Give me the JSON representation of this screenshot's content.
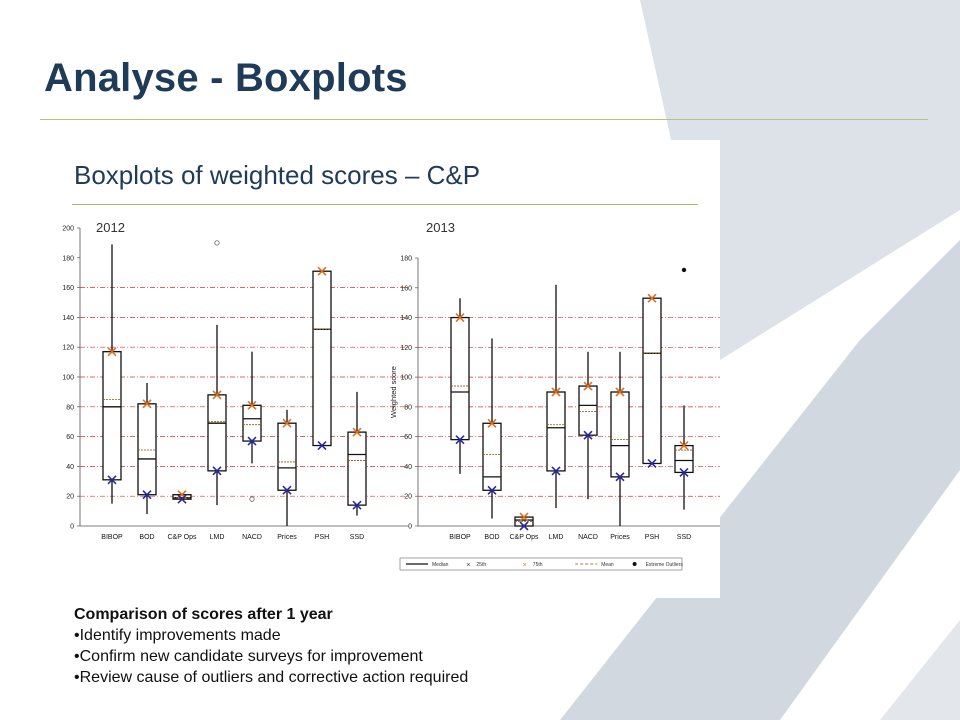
{
  "slide": {
    "title": "Analyse - Boxplots",
    "chart_heading": "Boxplots of weighted scores – C&P",
    "notes_heading": "Comparison of scores after 1 year",
    "notes": [
      "Identify improvements made",
      "Confirm new candidate surveys for improvement",
      "Review cause of outliers and corrective action required"
    ],
    "colors": {
      "title": "#1f3b57",
      "rule": "#b5c47a",
      "p75": "#e07020",
      "p25": "#2a2aa0",
      "gridline": "#e03030",
      "watermark": "#d8dde3"
    }
  },
  "chart_data": [
    {
      "type": "boxplot",
      "title": "2012",
      "xlabel": "",
      "ylabel": "",
      "ylim": [
        0,
        200
      ],
      "yticks": [
        0,
        20,
        40,
        60,
        80,
        100,
        120,
        140,
        160,
        180,
        200
      ],
      "gridlines": [
        20,
        40,
        60,
        80,
        100,
        120,
        140,
        160
      ],
      "categories": [
        "BIBOP",
        "BOD",
        "C&P Ops",
        "LMD",
        "NACD",
        "Prices",
        "PSH",
        "SSD"
      ],
      "boxes": [
        {
          "category": "BIBOP",
          "min": 15,
          "q1": 31,
          "median": 80,
          "mean": 85,
          "q3": 117,
          "max": 189,
          "p25": 31,
          "p75": 117
        },
        {
          "category": "BOD",
          "min": 8,
          "q1": 21,
          "median": 45,
          "mean": 51,
          "q3": 82,
          "max": 96,
          "p25": 21,
          "p75": 82
        },
        {
          "category": "C&P Ops",
          "min": 18,
          "q1": 18,
          "median": 19,
          "mean": 19,
          "q3": 21,
          "max": 21,
          "p25": 18,
          "p75": 21
        },
        {
          "category": "LMD",
          "min": 14,
          "q1": 37,
          "median": 69,
          "mean": 70,
          "q3": 88,
          "max": 135,
          "p25": 37,
          "p75": 88,
          "outliers": [
            190
          ]
        },
        {
          "category": "NACD",
          "min": 42,
          "q1": 57,
          "median": 72,
          "mean": 68,
          "q3": 81,
          "max": 117,
          "p25": 57,
          "p75": 81,
          "outliers": [
            18
          ]
        },
        {
          "category": "Prices",
          "min": 0,
          "q1": 24,
          "median": 39,
          "mean": 43,
          "q3": 69,
          "max": 78,
          "p25": 24,
          "p75": 69
        },
        {
          "category": "PSH",
          "min": 54,
          "q1": 54,
          "median": 132,
          "mean": 132,
          "q3": 171,
          "max": 171,
          "p25": 54,
          "p75": 171
        },
        {
          "category": "SSD",
          "min": 7,
          "q1": 14,
          "median": 48,
          "mean": 44,
          "q3": 63,
          "max": 90,
          "p25": 14,
          "p75": 63
        }
      ]
    },
    {
      "type": "boxplot",
      "title": "2013",
      "xlabel": "",
      "ylabel": "Weighted score",
      "ylim": [
        0,
        180
      ],
      "yticks": [
        0,
        20,
        40,
        60,
        80,
        100,
        120,
        140,
        160,
        180
      ],
      "gridlines": [
        20,
        40,
        60,
        80,
        100,
        120,
        140
      ],
      "categories": [
        "BIBOP",
        "BOD",
        "C&P Ops",
        "LMD",
        "NACD",
        "Prices",
        "PSH",
        "SSD"
      ],
      "legend": [
        "Median",
        "25th",
        "75th",
        "Mean",
        "Extreme Outliers"
      ],
      "legend_position": "bottom",
      "boxes": [
        {
          "category": "BIBOP",
          "min": 35,
          "q1": 58,
          "median": 90,
          "mean": 94,
          "q3": 140,
          "max": 153,
          "p25": 58,
          "p75": 140
        },
        {
          "category": "BOD",
          "min": 5,
          "q1": 24,
          "median": 33,
          "mean": 48,
          "q3": 69,
          "max": 126,
          "p25": 24,
          "p75": 69
        },
        {
          "category": "C&P Ops",
          "min": 0,
          "q1": 0,
          "median": 4,
          "mean": 3,
          "q3": 6,
          "max": 6,
          "p25": 0,
          "p75": 6
        },
        {
          "category": "LMD",
          "min": 12,
          "q1": 37,
          "median": 66,
          "mean": 68,
          "q3": 90,
          "max": 162,
          "p25": 37,
          "p75": 90
        },
        {
          "category": "NACD",
          "min": 18,
          "q1": 61,
          "median": 81,
          "mean": 77,
          "q3": 94,
          "max": 117,
          "p25": 61,
          "p75": 94
        },
        {
          "category": "Prices",
          "min": 0,
          "q1": 33,
          "median": 54,
          "mean": 58,
          "q3": 90,
          "max": 117,
          "p25": 33,
          "p75": 90
        },
        {
          "category": "PSH",
          "min": 42,
          "q1": 42,
          "median": 116,
          "mean": 116,
          "q3": 153,
          "max": 153,
          "p25": 42,
          "p75": 153
        },
        {
          "category": "SSD",
          "min": 11,
          "q1": 36,
          "median": 44,
          "mean": 51,
          "q3": 54,
          "max": 81,
          "p25": 36,
          "p75": 54,
          "outliers": [
            172
          ]
        }
      ]
    }
  ]
}
